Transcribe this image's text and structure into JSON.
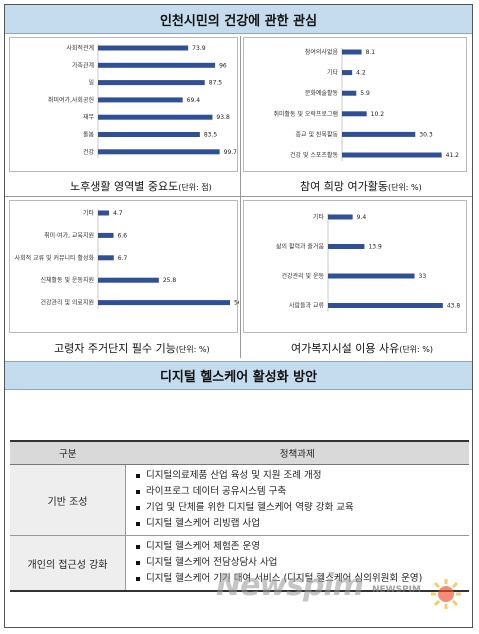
{
  "top_banner": "인천시민의 건강에 관한 관심",
  "mid_banner": "디지털 헬스케어 활성화 방안",
  "colors": {
    "bar": "#2f4f97",
    "banner": "#c5dcef"
  },
  "chart_data": [
    {
      "type": "bar",
      "orientation": "horizontal",
      "title": "노후생활 영역별 중요도",
      "unit": "(단위: 점)",
      "categories": [
        "사회적관계",
        "가족관계",
        "일",
        "취미여가,사회공헌",
        "재무",
        "돌봄",
        "건강"
      ],
      "values": [
        73.9,
        96,
        87.5,
        69.4,
        93.8,
        83.5,
        99.7
      ],
      "labels": [
        "73.9",
        "96",
        "87.5",
        "69.4",
        "93.8",
        "83.5",
        "99.7"
      ],
      "xlim": [
        0,
        100
      ]
    },
    {
      "type": "bar",
      "orientation": "horizontal",
      "title": "참여 희망 여가활동",
      "unit": "(단위: %)",
      "categories": [
        "참여의사없음",
        "기타",
        "문화예술활동",
        "취미활동 및 오락프로그램",
        "종교 및 친목활동",
        "건강 및 스포츠활동"
      ],
      "values": [
        8.1,
        4.2,
        5.9,
        10.2,
        30.3,
        41.2
      ],
      "labels": [
        "8.1",
        "4.2",
        "5.9",
        "10.2",
        "30.3",
        "41.2"
      ],
      "xlim": [
        0,
        43
      ]
    },
    {
      "type": "bar",
      "orientation": "horizontal",
      "title": "고령자 주거단지 필수 기능",
      "unit": "(단위: %)",
      "categories": [
        "기타",
        "취미·여가, 교육지원",
        "사회적 교류 및 커뮤니티 활성화",
        "신체활동 및 운동지원",
        "건강관리 및 의료지원"
      ],
      "values": [
        4.7,
        6.6,
        6.7,
        25.8,
        56
      ],
      "labels": [
        "4.7",
        "6.6",
        "6.7",
        "25.8",
        "56"
      ],
      "xlim": [
        0,
        56
      ]
    },
    {
      "type": "bar",
      "orientation": "horizontal",
      "title": "여가복지시설 이용 사유",
      "unit": "(단위: %)",
      "categories": [
        "기타",
        "삶의 활력과 즐거움",
        "건강관리 및 운동",
        "사람들과 교류"
      ],
      "values": [
        9.4,
        13.9,
        33,
        43.8
      ],
      "labels": [
        "9.4",
        "13.9",
        "33",
        "43.8"
      ],
      "xlim": [
        0,
        45
      ]
    }
  ],
  "policy_table": {
    "header": [
      "구분",
      "정책과제"
    ],
    "rows": [
      {
        "category": "기반 조성",
        "items": [
          "디지털의료제품 산업 육성 및 지원 조례 개정",
          "라이프로그 데이터 공유시스템 구축",
          "기업 및 단체를 위한 디지털 헬스케어 역량 강화 교육",
          "디지털 헬스케어 리빙랩 사업"
        ]
      },
      {
        "category": "개인의 접근성 강화",
        "items": [
          "디지털 헬스케어 체험존 운영",
          "디지털 헬스케어 전담상담사 사업",
          "디지털 헬스케어 기기 대여 서비스 (디지털 헬스케어 심의위원회 운영)"
        ]
      }
    ]
  },
  "watermark": {
    "main": "Newspim",
    "small": "NEWSPIM"
  }
}
